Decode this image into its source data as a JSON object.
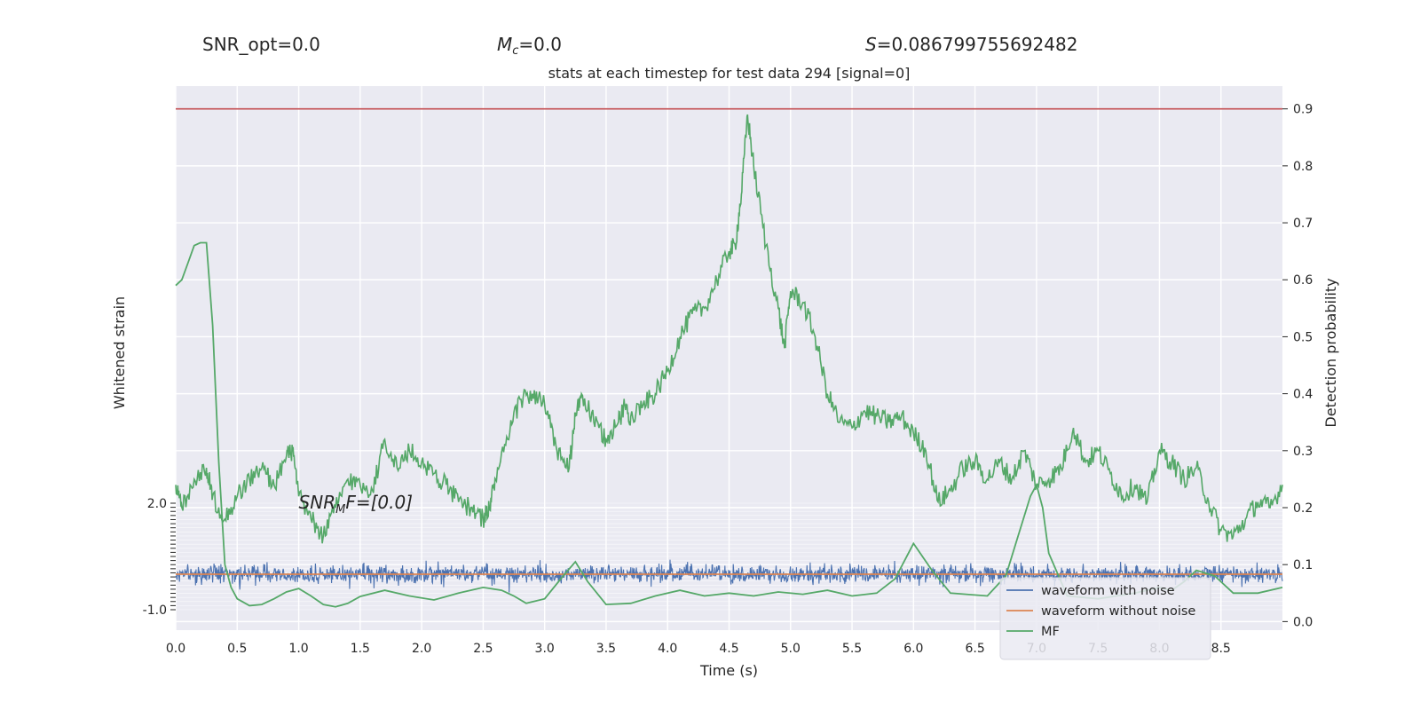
{
  "header": {
    "snr_opt": "SNR_opt=0.0",
    "mc_symbol": "M",
    "mc_sub": "c",
    "mc_value": "=0.0",
    "s_symbol": "S",
    "s_value": "=0.086799755692482"
  },
  "annotation": {
    "snr_mf_symbol": "SNR",
    "snr_mf_sub": "M",
    "snr_mf_value": "F=[0.0]"
  },
  "colors": {
    "plot_bg": "#eaeaf2",
    "grid": "#ffffff",
    "waveform_with_noise": "#4c72b0",
    "waveform_without_noise": "#dd8452",
    "mf": "#55a868",
    "threshold": "#c44e52"
  },
  "chart_data": {
    "type": "line",
    "title": "stats at each timestep for test data 294 [signal=0]",
    "xlabel": "Time (s)",
    "ylabel_left": "Whitened strain",
    "ylabel_right": "Detection probability",
    "xlim": [
      0,
      9.0
    ],
    "ylim_right": [
      -0.015,
      0.94
    ],
    "ylim_left": [
      -1.0,
      2.0
    ],
    "grid": true,
    "x_ticks": [
      "0.0",
      "0.5",
      "1.0",
      "1.5",
      "2.0",
      "2.5",
      "3.0",
      "3.5",
      "4.0",
      "4.5",
      "5.0",
      "5.5",
      "6.0",
      "6.5",
      "7.0",
      "7.5",
      "8.0",
      "8.5"
    ],
    "y_right_ticks": [
      "0.0",
      "0.1",
      "0.2",
      "0.3",
      "0.4",
      "0.5",
      "0.6",
      "0.7",
      "0.8",
      "0.9"
    ],
    "y_left_ticks": [
      "-1.0",
      "2.0"
    ],
    "threshold": 0.9,
    "legend": {
      "position": "lower-right",
      "entries": [
        "waveform with noise",
        "waveform without noise",
        "MF"
      ]
    },
    "series": [
      {
        "name": "MF",
        "x": [
          0.0,
          0.05,
          0.1,
          0.15,
          0.2,
          0.25,
          0.3,
          0.35,
          0.4,
          0.45,
          0.5,
          0.6,
          0.7,
          0.8,
          0.9,
          1.0,
          1.1,
          1.2,
          1.3,
          1.4,
          1.5,
          1.7,
          1.9,
          2.1,
          2.3,
          2.5,
          2.65,
          2.75,
          2.85,
          3.0,
          3.15,
          3.25,
          3.35,
          3.5,
          3.7,
          3.9,
          4.1,
          4.3,
          4.5,
          4.7,
          4.9,
          5.1,
          5.3,
          5.5,
          5.7,
          5.85,
          6.0,
          6.15,
          6.3,
          6.6,
          6.75,
          6.85,
          6.95,
          7.0,
          7.05,
          7.1,
          7.25,
          7.5,
          7.8,
          8.0,
          8.1,
          8.2,
          8.3,
          8.45,
          8.6,
          8.8,
          9.0
        ],
        "y": [
          0.59,
          0.6,
          0.63,
          0.66,
          0.665,
          0.665,
          0.52,
          0.28,
          0.1,
          0.06,
          0.04,
          0.028,
          0.03,
          0.04,
          0.052,
          0.058,
          0.045,
          0.03,
          0.026,
          0.032,
          0.044,
          0.055,
          0.045,
          0.038,
          0.05,
          0.06,
          0.055,
          0.045,
          0.032,
          0.04,
          0.08,
          0.105,
          0.07,
          0.03,
          0.032,
          0.045,
          0.055,
          0.045,
          0.05,
          0.045,
          0.052,
          0.048,
          0.055,
          0.045,
          0.05,
          0.075,
          0.137,
          0.09,
          0.05,
          0.045,
          0.08,
          0.15,
          0.22,
          0.24,
          0.2,
          0.12,
          0.045,
          0.04,
          0.05,
          0.06,
          0.055,
          0.07,
          0.09,
          0.08,
          0.05,
          0.05,
          0.06
        ]
      },
      {
        "name": "Detection probability",
        "x": [
          0.0,
          0.05,
          0.15,
          0.25,
          0.3,
          0.4,
          0.5,
          0.6,
          0.7,
          0.8,
          0.9,
          0.95,
          1.0,
          1.1,
          1.2,
          1.3,
          1.4,
          1.5,
          1.6,
          1.7,
          1.8,
          1.9,
          2.0,
          2.1,
          2.2,
          2.3,
          2.4,
          2.5,
          2.55,
          2.6,
          2.7,
          2.8,
          2.9,
          3.0,
          3.1,
          3.2,
          3.25,
          3.3,
          3.4,
          3.5,
          3.6,
          3.65,
          3.7,
          3.8,
          3.9,
          4.0,
          4.1,
          4.2,
          4.3,
          4.4,
          4.5,
          4.55,
          4.6,
          4.65,
          4.7,
          4.8,
          4.9,
          4.95,
          5.0,
          5.1,
          5.2,
          5.3,
          5.4,
          5.5,
          5.6,
          5.7,
          5.8,
          5.9,
          6.0,
          6.1,
          6.2,
          6.3,
          6.4,
          6.5,
          6.6,
          6.7,
          6.8,
          6.9,
          7.0,
          7.1,
          7.2,
          7.3,
          7.4,
          7.5,
          7.6,
          7.7,
          7.8,
          7.9,
          8.0,
          8.1,
          8.2,
          8.3,
          8.4,
          8.5,
          8.6,
          8.7,
          8.8,
          8.9,
          9.0
        ],
        "y": [
          0.24,
          0.2,
          0.25,
          0.27,
          0.22,
          0.18,
          0.22,
          0.25,
          0.27,
          0.24,
          0.29,
          0.3,
          0.22,
          0.18,
          0.15,
          0.2,
          0.25,
          0.24,
          0.23,
          0.32,
          0.27,
          0.3,
          0.28,
          0.26,
          0.24,
          0.21,
          0.2,
          0.18,
          0.2,
          0.25,
          0.32,
          0.39,
          0.4,
          0.38,
          0.3,
          0.27,
          0.36,
          0.4,
          0.35,
          0.32,
          0.35,
          0.38,
          0.36,
          0.38,
          0.4,
          0.44,
          0.5,
          0.54,
          0.55,
          0.6,
          0.65,
          0.66,
          0.75,
          0.89,
          0.8,
          0.66,
          0.55,
          0.48,
          0.58,
          0.56,
          0.5,
          0.4,
          0.35,
          0.34,
          0.37,
          0.36,
          0.35,
          0.36,
          0.33,
          0.3,
          0.21,
          0.23,
          0.27,
          0.28,
          0.25,
          0.28,
          0.25,
          0.3,
          0.24,
          0.25,
          0.27,
          0.34,
          0.28,
          0.3,
          0.26,
          0.22,
          0.24,
          0.21,
          0.3,
          0.28,
          0.25,
          0.27,
          0.21,
          0.16,
          0.15,
          0.18,
          0.21,
          0.2,
          0.24
        ]
      },
      {
        "name": "waveform with noise",
        "x_range": [
          0,
          9.0
        ],
        "center": 0.0,
        "noise_sigma": 0.12,
        "typical_amplitude": 0.25
      },
      {
        "name": "waveform without noise",
        "x_range": [
          0,
          9.0
        ],
        "constant": 0.0
      }
    ]
  }
}
